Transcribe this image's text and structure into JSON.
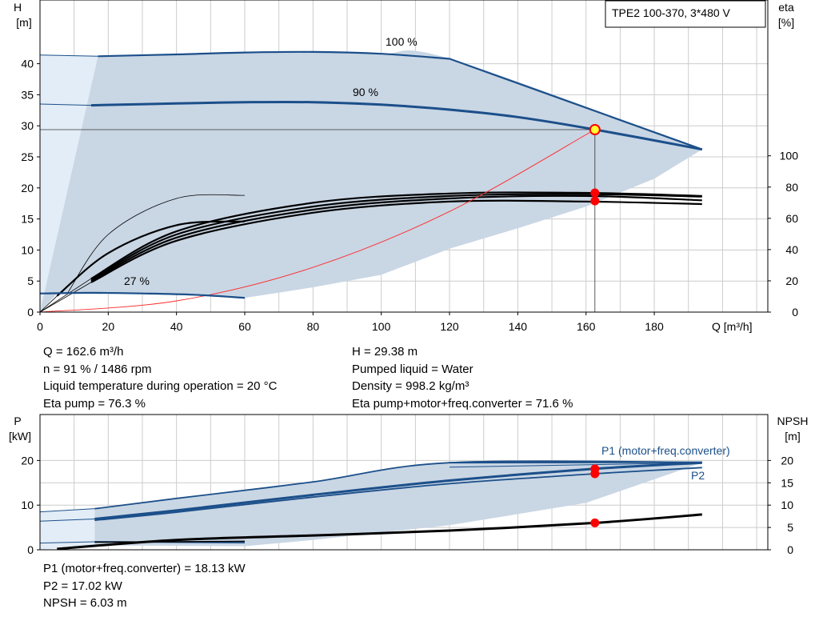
{
  "colors": {
    "curve_blue": "#1b4f8a",
    "area_fill": "#c9d6e4",
    "area_light": "#e3edf7",
    "efficiency_black": "#000000",
    "system_red": "#ff2a2a",
    "point_red": "#ff0000",
    "point_yellow": "#ffff33",
    "grid": "#cccccc"
  },
  "legend_box": "TPE2 100-370, 3*480 V",
  "top": {
    "left_axis": {
      "label_line1": "H",
      "label_line2": "[m]",
      "ticks": [
        0,
        5,
        10,
        15,
        20,
        25,
        30,
        35,
        40
      ]
    },
    "right_axis": {
      "label_line1": "eta",
      "label_line2": "[%]",
      "ticks": [
        0,
        20,
        40,
        60,
        80,
        100
      ]
    },
    "x_axis": {
      "label": "Q [m³/h]",
      "ticks": [
        0,
        20,
        40,
        60,
        80,
        100,
        120,
        140,
        160,
        180
      ]
    },
    "curve_labels": {
      "c100": "100 %",
      "c90": "90 %",
      "c27": "27 %"
    }
  },
  "bottom": {
    "left_axis": {
      "label_line1": "P",
      "label_line2": "[kW]",
      "ticks": [
        0,
        10,
        20
      ]
    },
    "right_axis": {
      "label_line1": "NPSH",
      "label_line2": "[m]",
      "ticks": [
        0,
        5,
        10,
        15,
        20
      ]
    },
    "series_labels": {
      "p1": "P1 (motor+freq.converter)",
      "p2": "P2"
    }
  },
  "info_top_left": [
    "Q = 162.6 m³/h",
    "n = 91 % / 1486 rpm",
    "Liquid temperature during operation = 20 °C",
    "Eta pump = 76.3 %"
  ],
  "info_top_right": [
    "H = 29.38 m",
    "Pumped liquid = Water",
    "Density = 998.2 kg/m³",
    "Eta pump+motor+freq.converter = 71.6 %"
  ],
  "info_bottom": [
    "P1 (motor+freq.converter) = 18.13 kW",
    "P2 = 17.02 kW",
    "NPSH = 6.03 m"
  ],
  "chart_data": [
    {
      "type": "line",
      "title": "",
      "xlabel": "Q [m³/h]",
      "ylabel": "H [m]",
      "y2label": "eta [%]",
      "xlim": [
        0,
        200
      ],
      "ylim": [
        0,
        45
      ],
      "y2lim": [
        0,
        100
      ],
      "grid": true,
      "head_series": [
        {
          "name": "100 %",
          "x": [
            17,
            40,
            60,
            80,
            100,
            120,
            194
          ],
          "y": [
            41.2,
            41.5,
            41.8,
            41.9,
            41.6,
            40.8,
            26.2
          ]
        },
        {
          "name": "90 %",
          "x": [
            15,
            40,
            60,
            80,
            100,
            120,
            140,
            162.6,
            194
          ],
          "y": [
            33.3,
            33.6,
            33.8,
            33.8,
            33.4,
            32.6,
            31.4,
            29.4,
            26.2
          ]
        },
        {
          "name": "27 %",
          "x": [
            0,
            15,
            30,
            45,
            60
          ],
          "y": [
            3.0,
            3.1,
            3.0,
            2.8,
            2.3
          ]
        }
      ],
      "operating_range_area": {
        "upper_x": [
          17,
          40,
          60,
          80,
          100,
          120,
          194
        ],
        "upper_y": [
          41.2,
          41.5,
          41.8,
          41.9,
          41.6,
          40.8,
          26.2
        ],
        "lower_x": [
          60,
          80,
          100,
          120,
          140,
          160,
          180,
          194
        ],
        "lower_y": [
          2.3,
          4.0,
          6.0,
          10.2,
          13.5,
          17.0,
          21.5,
          26.2
        ]
      },
      "efficiency_curves": [
        {
          "x": [
            15,
            40,
            80,
            120,
            160,
            194
          ],
          "y": [
            4.8,
            11.5,
            16.0,
            17.8,
            17.8,
            17.4
          ]
        },
        {
          "x": [
            15,
            40,
            80,
            120,
            160,
            194
          ],
          "y": [
            5.0,
            12.0,
            16.5,
            18.3,
            18.7,
            18.0
          ]
        },
        {
          "x": [
            15,
            40,
            80,
            120,
            160,
            194
          ],
          "y": [
            5.2,
            12.5,
            17.0,
            18.7,
            19.0,
            18.6
          ]
        },
        {
          "x": [
            15,
            40,
            80,
            120,
            160,
            194
          ],
          "y": [
            5.4,
            13.0,
            17.6,
            19.1,
            19.2,
            18.7
          ]
        },
        {
          "x": [
            5,
            20,
            40,
            60
          ],
          "y": [
            2.6,
            9.5,
            14.0,
            14.6
          ]
        },
        {
          "x": [
            8,
            20,
            40,
            60
          ],
          "y": [
            3.0,
            12.5,
            18.3,
            18.8
          ]
        }
      ],
      "system_curve": {
        "x": [
          0,
          40,
          80,
          120,
          162.6
        ],
        "y": [
          0,
          1.8,
          7.2,
          16.2,
          29.4
        ]
      },
      "duty_point": {
        "q": 162.6,
        "h": 29.38,
        "eta_pump": 76.3,
        "eta_total": 71.6
      }
    },
    {
      "type": "line",
      "title": "",
      "xlabel": "Q [m³/h]",
      "ylabel": "P [kW]",
      "y2label": "NPSH [m]",
      "xlim": [
        0,
        200
      ],
      "ylim": [
        0,
        23
      ],
      "y2lim": [
        0,
        23
      ],
      "grid": true,
      "series": [
        {
          "name": "P1 (motor+freq.converter)",
          "x": [
            16,
            40,
            80,
            120,
            162.6,
            194
          ],
          "y": [
            6.9,
            8.8,
            12.3,
            15.5,
            18.13,
            19.5
          ]
        },
        {
          "name": "P2",
          "x": [
            16,
            40,
            80,
            120,
            162.6,
            194
          ],
          "y": [
            6.6,
            8.4,
            11.8,
            14.8,
            17.02,
            18.4
          ]
        },
        {
          "name": "",
          "x": [
            16,
            40,
            80,
            120,
            194
          ],
          "y": [
            9.2,
            11.5,
            15.2,
            19.5,
            19.6
          ]
        },
        {
          "name": "",
          "x": [
            16,
            60
          ],
          "y": [
            1.8,
            1.6
          ]
        }
      ],
      "npsh_curve": {
        "x": [
          5,
          40,
          80,
          120,
          162.6,
          194
        ],
        "y": [
          0.2,
          2.2,
          3.2,
          4.3,
          6.03,
          7.9
        ]
      },
      "duty_point": {
        "q": 162.6,
        "p1": 18.13,
        "p2": 17.02,
        "npsh": 6.03
      }
    }
  ]
}
